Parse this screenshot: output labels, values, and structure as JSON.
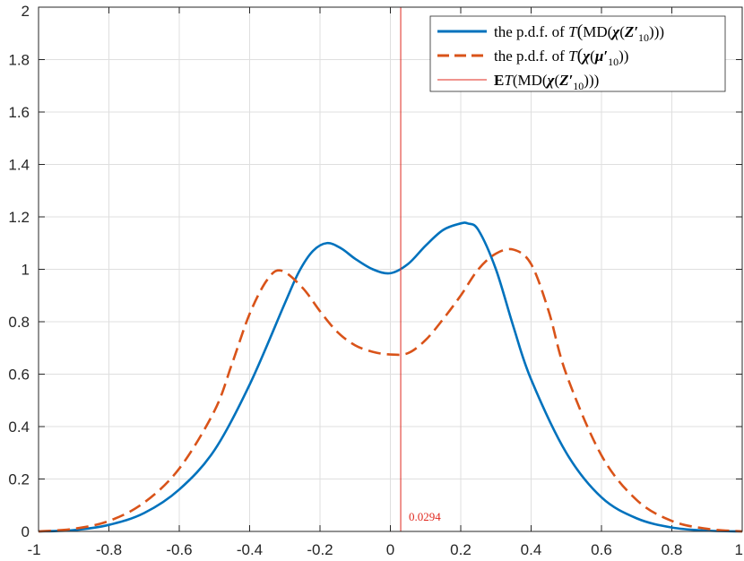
{
  "chart_data": {
    "type": "line",
    "xlim": [
      -1,
      1
    ],
    "ylim": [
      0,
      2
    ],
    "grid": true,
    "legend_position": "top-right",
    "x_ticks": [
      "-1",
      "-0.8",
      "-0.6",
      "-0.4",
      "-0.2",
      "0",
      "0.2",
      "0.4",
      "0.6",
      "0.8",
      "1"
    ],
    "y_ticks": [
      "0",
      "0.2",
      "0.4",
      "0.6",
      "0.8",
      "1",
      "1.2",
      "1.4",
      "1.6",
      "1.8",
      "2"
    ],
    "series": [
      {
        "name": "the p.d.f. of T(MD(χ(Z′10)))",
        "name_parts": {
          "pre": "the p.d.f. of ",
          "T": "T",
          "md": "MD(",
          "chi": "χ",
          "open": "(",
          "Z": "Z′",
          "sub": "10",
          "close": ")))"
        },
        "color": "#0072BD",
        "style": "solid",
        "x": [
          -1.0,
          -0.9,
          -0.8,
          -0.7,
          -0.6,
          -0.5,
          -0.4,
          -0.3,
          -0.26,
          -0.22,
          -0.18,
          -0.14,
          -0.1,
          -0.05,
          0.0,
          0.05,
          0.1,
          0.15,
          0.2,
          0.22,
          0.25,
          0.3,
          0.35,
          0.4,
          0.5,
          0.6,
          0.7,
          0.8,
          0.9,
          1.0
        ],
        "y": [
          0.0,
          0.005,
          0.025,
          0.07,
          0.16,
          0.31,
          0.56,
          0.87,
          0.99,
          1.07,
          1.1,
          1.08,
          1.04,
          1.0,
          0.985,
          1.02,
          1.09,
          1.15,
          1.175,
          1.175,
          1.15,
          1.0,
          0.78,
          0.58,
          0.3,
          0.13,
          0.05,
          0.015,
          0.003,
          0.0
        ]
      },
      {
        "name": "the p.d.f. of T(χ(μ′10))",
        "name_parts": {
          "pre": "the p.d.f. of ",
          "T": "T",
          "chi": "χ",
          "open": "(",
          "mu": "μ′",
          "sub": "10",
          "close": "))"
        },
        "color": "#D95319",
        "style": "dashed",
        "x": [
          -1.0,
          -0.9,
          -0.8,
          -0.7,
          -0.6,
          -0.5,
          -0.45,
          -0.4,
          -0.35,
          -0.31,
          -0.25,
          -0.2,
          -0.15,
          -0.1,
          -0.05,
          0.0,
          0.05,
          0.1,
          0.15,
          0.2,
          0.25,
          0.3,
          0.35,
          0.4,
          0.45,
          0.5,
          0.6,
          0.7,
          0.8,
          0.9,
          1.0
        ],
        "y": [
          0.0,
          0.01,
          0.04,
          0.11,
          0.24,
          0.46,
          0.64,
          0.83,
          0.96,
          0.995,
          0.93,
          0.84,
          0.76,
          0.71,
          0.685,
          0.675,
          0.68,
          0.73,
          0.81,
          0.9,
          1.0,
          1.06,
          1.075,
          1.02,
          0.84,
          0.6,
          0.29,
          0.12,
          0.04,
          0.01,
          0.0
        ]
      }
    ],
    "vline": {
      "name": "ET(MD(χ(Z′10)))",
      "name_parts": {
        "E": "E",
        "T": "T",
        "md": "(MD(",
        "chi": "χ",
        "open": "(",
        "Z": "Z′",
        "sub": "10",
        "close": ")))"
      },
      "x": 0.0294,
      "label": "0.0294",
      "color": "#E0281E"
    }
  }
}
